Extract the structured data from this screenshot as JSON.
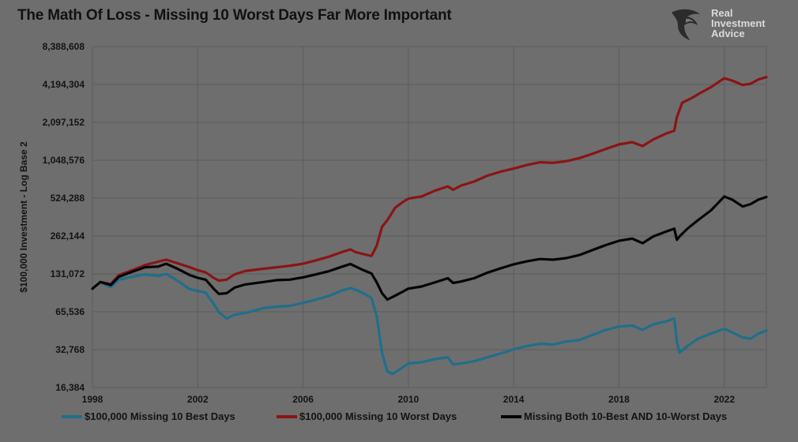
{
  "header": {
    "title": "The Math Of Loss - Missing 10 Worst Days Far More Important",
    "logo_line1": "Real",
    "logo_line2": "Investment",
    "logo_line3": "Advice"
  },
  "colors": {
    "background": "#6e6e6e",
    "grid": "#5c5c5c",
    "best": "#1f6f8a",
    "worst": "#8b1414",
    "both": "#050505"
  },
  "chart_data": {
    "type": "line",
    "title": "The Math Of Loss - Missing 10 Worst Days Far More Important",
    "xlabel": "",
    "ylabel": "$100,000 Investment - Log Base 2",
    "scale_y": "log2",
    "grid": true,
    "legend_position": "bottom",
    "xlim": [
      1998,
      2023.6
    ],
    "ylim": [
      16384,
      8388608
    ],
    "x_ticks": [
      "1998",
      "2002",
      "2006",
      "2010",
      "2014",
      "2018",
      "2022"
    ],
    "y_ticks": [
      "8,388,608",
      "4,194,304",
      "2,097,152",
      "1,048,576",
      "524,288",
      "262,144",
      "131,072",
      "65,536",
      "32,768",
      "16,384"
    ],
    "series": [
      {
        "name": "$100,000 Missing 10 Best Days",
        "color": "#1f6f8a",
        "points": [
          [
            1998.0,
            100000
          ],
          [
            1998.3,
            112000
          ],
          [
            1998.7,
            103000
          ],
          [
            1999.0,
            118000
          ],
          [
            1999.5,
            124000
          ],
          [
            2000.0,
            130000
          ],
          [
            2000.5,
            126000
          ],
          [
            2000.8,
            131000
          ],
          [
            2001.2,
            117000
          ],
          [
            2001.7,
            99000
          ],
          [
            2002.0,
            96000
          ],
          [
            2002.3,
            93000
          ],
          [
            2002.6,
            76000
          ],
          [
            2002.8,
            65000
          ],
          [
            2003.1,
            58000
          ],
          [
            2003.4,
            62000
          ],
          [
            2003.8,
            64000
          ],
          [
            2004.5,
            70000
          ],
          [
            2005.0,
            72000
          ],
          [
            2005.5,
            73000
          ],
          [
            2006.0,
            77000
          ],
          [
            2006.5,
            82000
          ],
          [
            2007.0,
            88000
          ],
          [
            2007.5,
            97000
          ],
          [
            2007.8,
            101000
          ],
          [
            2008.0,
            98000
          ],
          [
            2008.3,
            92000
          ],
          [
            2008.6,
            84000
          ],
          [
            2008.8,
            60000
          ],
          [
            2009.0,
            31000
          ],
          [
            2009.2,
            22000
          ],
          [
            2009.4,
            21000
          ],
          [
            2009.7,
            23000
          ],
          [
            2010.0,
            25500
          ],
          [
            2010.5,
            26000
          ],
          [
            2011.0,
            27500
          ],
          [
            2011.5,
            28500
          ],
          [
            2011.7,
            25000
          ],
          [
            2012.0,
            25500
          ],
          [
            2012.5,
            26500
          ],
          [
            2013.0,
            28500
          ],
          [
            2013.5,
            30500
          ],
          [
            2014.0,
            33000
          ],
          [
            2014.5,
            35000
          ],
          [
            2015.0,
            36500
          ],
          [
            2015.5,
            36000
          ],
          [
            2016.0,
            38000
          ],
          [
            2016.5,
            39000
          ],
          [
            2017.0,
            43000
          ],
          [
            2017.5,
            47000
          ],
          [
            2018.0,
            50000
          ],
          [
            2018.5,
            51000
          ],
          [
            2018.9,
            47000
          ],
          [
            2019.3,
            52000
          ],
          [
            2019.8,
            55000
          ],
          [
            2020.1,
            58000
          ],
          [
            2020.2,
            38000
          ],
          [
            2020.3,
            31000
          ],
          [
            2020.6,
            35000
          ],
          [
            2021.0,
            40000
          ],
          [
            2021.5,
            44000
          ],
          [
            2022.0,
            48000
          ],
          [
            2022.3,
            45000
          ],
          [
            2022.7,
            41000
          ],
          [
            2023.0,
            40000
          ],
          [
            2023.3,
            44000
          ],
          [
            2023.6,
            46500
          ]
        ]
      },
      {
        "name": "$100,000 Missing 10 Worst Days",
        "color": "#8b1414",
        "points": [
          [
            1998.0,
            100000
          ],
          [
            1998.3,
            113000
          ],
          [
            1998.7,
            109000
          ],
          [
            1999.0,
            128000
          ],
          [
            1999.5,
            140000
          ],
          [
            2000.0,
            154000
          ],
          [
            2000.5,
            164000
          ],
          [
            2000.8,
            170000
          ],
          [
            2001.2,
            160000
          ],
          [
            2001.7,
            148000
          ],
          [
            2002.0,
            140000
          ],
          [
            2002.3,
            135000
          ],
          [
            2002.6,
            122000
          ],
          [
            2002.8,
            116000
          ],
          [
            2003.1,
            118000
          ],
          [
            2003.4,
            130000
          ],
          [
            2003.8,
            138000
          ],
          [
            2004.5,
            144000
          ],
          [
            2005.0,
            148000
          ],
          [
            2005.5,
            152000
          ],
          [
            2006.0,
            158000
          ],
          [
            2006.5,
            168000
          ],
          [
            2007.0,
            180000
          ],
          [
            2007.5,
            196000
          ],
          [
            2007.8,
            205000
          ],
          [
            2008.0,
            195000
          ],
          [
            2008.3,
            188000
          ],
          [
            2008.6,
            182000
          ],
          [
            2008.8,
            220000
          ],
          [
            2009.0,
            310000
          ],
          [
            2009.2,
            350000
          ],
          [
            2009.5,
            440000
          ],
          [
            2009.8,
            490000
          ],
          [
            2010.0,
            520000
          ],
          [
            2010.5,
            540000
          ],
          [
            2011.0,
            600000
          ],
          [
            2011.5,
            650000
          ],
          [
            2011.7,
            610000
          ],
          [
            2012.0,
            660000
          ],
          [
            2012.5,
            710000
          ],
          [
            2013.0,
            790000
          ],
          [
            2013.5,
            850000
          ],
          [
            2014.0,
            900000
          ],
          [
            2014.5,
            960000
          ],
          [
            2015.0,
            1010000
          ],
          [
            2015.5,
            1000000
          ],
          [
            2016.0,
            1030000
          ],
          [
            2016.5,
            1090000
          ],
          [
            2017.0,
            1180000
          ],
          [
            2017.5,
            1290000
          ],
          [
            2018.0,
            1400000
          ],
          [
            2018.5,
            1460000
          ],
          [
            2018.9,
            1360000
          ],
          [
            2019.3,
            1530000
          ],
          [
            2019.8,
            1710000
          ],
          [
            2020.1,
            1800000
          ],
          [
            2020.2,
            2300000
          ],
          [
            2020.4,
            3000000
          ],
          [
            2020.8,
            3300000
          ],
          [
            2021.0,
            3500000
          ],
          [
            2021.5,
            4000000
          ],
          [
            2022.0,
            4700000
          ],
          [
            2022.3,
            4500000
          ],
          [
            2022.7,
            4150000
          ],
          [
            2023.0,
            4250000
          ],
          [
            2023.3,
            4600000
          ],
          [
            2023.6,
            4800000
          ]
        ]
      },
      {
        "name": "Missing Both 10-Best AND 10-Worst Days",
        "color": "#050505",
        "points": [
          [
            1998.0,
            100000
          ],
          [
            1998.3,
            113000
          ],
          [
            1998.7,
            107000
          ],
          [
            1999.0,
            124000
          ],
          [
            1999.5,
            136000
          ],
          [
            2000.0,
            148000
          ],
          [
            2000.5,
            150000
          ],
          [
            2000.8,
            158000
          ],
          [
            2001.2,
            145000
          ],
          [
            2001.7,
            128000
          ],
          [
            2002.0,
            122000
          ],
          [
            2002.3,
            118000
          ],
          [
            2002.6,
            100000
          ],
          [
            2002.8,
            91000
          ],
          [
            2003.1,
            92000
          ],
          [
            2003.4,
            102000
          ],
          [
            2003.8,
            108000
          ],
          [
            2004.5,
            113000
          ],
          [
            2005.0,
            117000
          ],
          [
            2005.5,
            118000
          ],
          [
            2006.0,
            123000
          ],
          [
            2006.5,
            130000
          ],
          [
            2007.0,
            138000
          ],
          [
            2007.5,
            150000
          ],
          [
            2007.8,
            157000
          ],
          [
            2008.0,
            150000
          ],
          [
            2008.3,
            140000
          ],
          [
            2008.6,
            132000
          ],
          [
            2008.8,
            112000
          ],
          [
            2009.0,
            92000
          ],
          [
            2009.2,
            82000
          ],
          [
            2009.5,
            88000
          ],
          [
            2009.8,
            95000
          ],
          [
            2010.0,
            100000
          ],
          [
            2010.5,
            104000
          ],
          [
            2011.0,
            112000
          ],
          [
            2011.5,
            121000
          ],
          [
            2011.7,
            111000
          ],
          [
            2012.0,
            114000
          ],
          [
            2012.5,
            121000
          ],
          [
            2013.0,
            134000
          ],
          [
            2013.5,
            145000
          ],
          [
            2014.0,
            156000
          ],
          [
            2014.5,
            165000
          ],
          [
            2015.0,
            172000
          ],
          [
            2015.5,
            170000
          ],
          [
            2016.0,
            175000
          ],
          [
            2016.5,
            185000
          ],
          [
            2017.0,
            203000
          ],
          [
            2017.5,
            222000
          ],
          [
            2018.0,
            240000
          ],
          [
            2018.5,
            250000
          ],
          [
            2018.9,
            230000
          ],
          [
            2019.3,
            260000
          ],
          [
            2019.8,
            285000
          ],
          [
            2020.1,
            300000
          ],
          [
            2020.2,
            245000
          ],
          [
            2020.3,
            260000
          ],
          [
            2020.6,
            300000
          ],
          [
            2021.0,
            350000
          ],
          [
            2021.5,
            420000
          ],
          [
            2022.0,
            540000
          ],
          [
            2022.3,
            510000
          ],
          [
            2022.7,
            450000
          ],
          [
            2023.0,
            470000
          ],
          [
            2023.3,
            510000
          ],
          [
            2023.6,
            535000
          ]
        ]
      }
    ]
  }
}
